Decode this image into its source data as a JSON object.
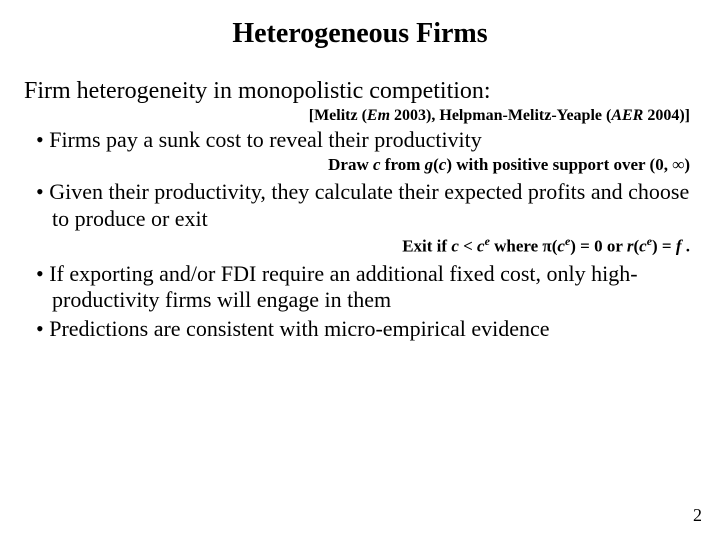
{
  "title": "Heterogeneous Firms",
  "subtitle": "Firm heterogeneity in monopolistic competition:",
  "citation_open": "[Melitz (",
  "citation_em": "Em",
  "citation_mid": " 2003), Helpman-Melitz-Yeaple (",
  "citation_aer": "AER",
  "citation_close": " 2004)]",
  "bullet1": "Firms pay a sunk cost to reveal their productivity",
  "note1_a": "Draw ",
  "note1_c": "c",
  "note1_b": " from ",
  "note1_g": "g",
  "note1_paren": "(",
  "note1_c2": "c",
  "note1_d": ") with positive support over (0, ∞)",
  "bullet2": "Given their productivity, they calculate their expected profits and choose to produce or exit",
  "note2_a": "Exit if ",
  "note2_c": "c",
  "note2_lt": " < ",
  "note2_ce": "c",
  "note2_where": " where π(",
  "note2_ce2": "c",
  "note2_eq0": ") = 0    or   ",
  "note2_r": "r",
  "note2_paren2": "(",
  "note2_ce3": "c",
  "note2_eqf": ") = ",
  "note2_f": "f",
  "note2_period": " .",
  "bullet3": "If exporting and/or FDI require an additional fixed cost, only high-productivity firms will engage in them",
  "bullet4": "Predictions are consistent with micro-empirical evidence",
  "pagenum": "2",
  "colors": {
    "text": "#000000",
    "background": "#ffffff"
  },
  "fonts": {
    "family": "Times New Roman",
    "title_size": 28,
    "subtitle_size": 24,
    "body_size": 22,
    "note_size": 17,
    "citation_size": 16
  }
}
